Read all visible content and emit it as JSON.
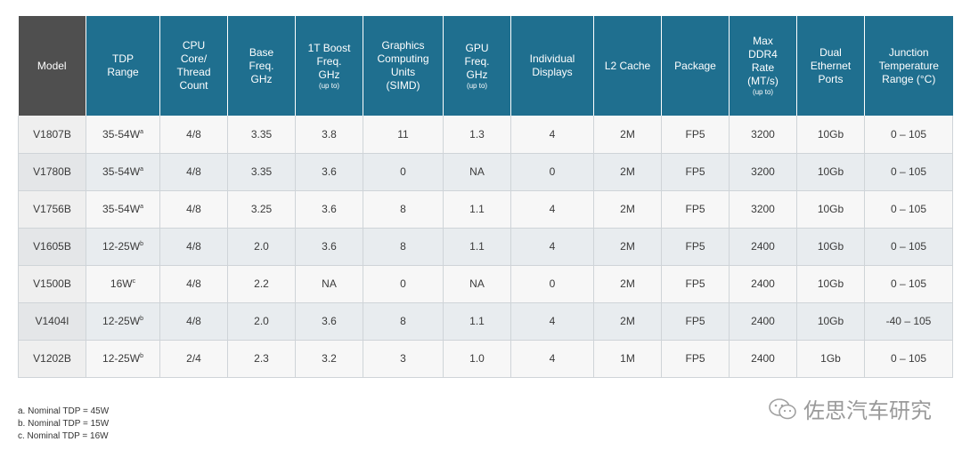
{
  "table": {
    "headers": [
      {
        "lines": [
          "Model"
        ],
        "sub": ""
      },
      {
        "lines": [
          "TDP",
          "Range"
        ],
        "sub": ""
      },
      {
        "lines": [
          "CPU",
          "Core/",
          "Thread",
          "Count"
        ],
        "sub": ""
      },
      {
        "lines": [
          "Base",
          "Freq.",
          "GHz"
        ],
        "sub": ""
      },
      {
        "lines": [
          "1T Boost",
          "Freq.",
          "GHz"
        ],
        "sub": "(up to)"
      },
      {
        "lines": [
          "Graphics",
          "Computing",
          "Units",
          "(SIMD)"
        ],
        "sub": ""
      },
      {
        "lines": [
          "GPU",
          "Freq.",
          "GHz"
        ],
        "sub": "(up to)"
      },
      {
        "lines": [
          "Individual",
          "Displays"
        ],
        "sub": ""
      },
      {
        "lines": [
          "L2 Cache"
        ],
        "sub": ""
      },
      {
        "lines": [
          "Package"
        ],
        "sub": ""
      },
      {
        "lines": [
          "Max",
          "DDR4",
          "Rate",
          "(MT/s)"
        ],
        "sub": "(up to)"
      },
      {
        "lines": [
          "Dual",
          "Ethernet",
          "Ports"
        ],
        "sub": ""
      },
      {
        "lines": [
          "Junction",
          "Temperature",
          "Range (°C)"
        ],
        "sub": ""
      }
    ],
    "rows": [
      {
        "model": "V1807B",
        "tdp": "35-54W",
        "tdp_note": "a",
        "cores": "4/8",
        "base": "3.35",
        "boost": "3.8",
        "cu": "11",
        "gpu": "1.3",
        "displays": "4",
        "l2": "2M",
        "package": "FP5",
        "ddr4": "3200",
        "ethernet": "10Gb",
        "temp": "0 – 105"
      },
      {
        "model": "V1780B",
        "tdp": "35-54W",
        "tdp_note": "a",
        "cores": "4/8",
        "base": "3.35",
        "boost": "3.6",
        "cu": "0",
        "gpu": "NA",
        "displays": "0",
        "l2": "2M",
        "package": "FP5",
        "ddr4": "3200",
        "ethernet": "10Gb",
        "temp": "0 – 105"
      },
      {
        "model": "V1756B",
        "tdp": "35-54W",
        "tdp_note": "a",
        "cores": "4/8",
        "base": "3.25",
        "boost": "3.6",
        "cu": "8",
        "gpu": "1.1",
        "displays": "4",
        "l2": "2M",
        "package": "FP5",
        "ddr4": "3200",
        "ethernet": "10Gb",
        "temp": "0 – 105"
      },
      {
        "model": "V1605B",
        "tdp": "12-25W",
        "tdp_note": "b",
        "cores": "4/8",
        "base": "2.0",
        "boost": "3.6",
        "cu": "8",
        "gpu": "1.1",
        "displays": "4",
        "l2": "2M",
        "package": "FP5",
        "ddr4": "2400",
        "ethernet": "10Gb",
        "temp": "0 – 105"
      },
      {
        "model": "V1500B",
        "tdp": "16W",
        "tdp_note": "c",
        "cores": "4/8",
        "base": "2.2",
        "boost": "NA",
        "cu": "0",
        "gpu": "NA",
        "displays": "0",
        "l2": "2M",
        "package": "FP5",
        "ddr4": "2400",
        "ethernet": "10Gb",
        "temp": "0 – 105"
      },
      {
        "model": "V1404I",
        "tdp": "12-25W",
        "tdp_note": "b",
        "cores": "4/8",
        "base": "2.0",
        "boost": "3.6",
        "cu": "8",
        "gpu": "1.1",
        "displays": "4",
        "l2": "2M",
        "package": "FP5",
        "ddr4": "2400",
        "ethernet": "10Gb",
        "temp": "-40 – 105"
      },
      {
        "model": "V1202B",
        "tdp": "12-25W",
        "tdp_note": "b",
        "cores": "2/4",
        "base": "2.3",
        "boost": "3.2",
        "cu": "3",
        "gpu": "1.0",
        "displays": "4",
        "l2": "1M",
        "package": "FP5",
        "ddr4": "2400",
        "ethernet": "1Gb",
        "temp": "0 – 105"
      }
    ]
  },
  "notes": [
    "a. Nominal TDP = 45W",
    "b. Nominal TDP = 15W",
    "c. Nominal TDP = 16W"
  ],
  "watermark": {
    "text": "佐思汽车研究",
    "icon": "wechat-icon"
  },
  "colors": {
    "header_blue": "#1f6f8f",
    "header_model": "#4f4f4f"
  }
}
